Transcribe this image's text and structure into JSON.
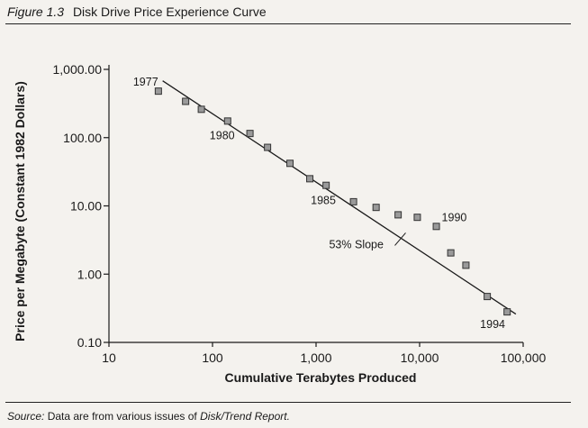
{
  "figure": {
    "number": "Figure 1.3",
    "title": "Disk Drive Price Experience Curve",
    "source_label": "Source:",
    "source_text": "Data are from various issues of",
    "source_publication": "Disk/Trend Report."
  },
  "chart_data": {
    "type": "scatter",
    "xlabel": "Cumulative Terabytes Produced",
    "ylabel": "Price per Megabyte (Constant 1982 Dollars)",
    "xscale": "log",
    "yscale": "log",
    "xlim": [
      10,
      100000
    ],
    "ylim": [
      0.1,
      1000
    ],
    "xticks": [
      10,
      100,
      1000,
      10000,
      100000
    ],
    "xtick_labels": [
      "10",
      "100",
      "1,000",
      "10,000",
      "100,000"
    ],
    "yticks": [
      0.1,
      1,
      10,
      100,
      1000
    ],
    "ytick_labels": [
      "0.10",
      "1.00",
      "10.00",
      "100.00",
      "1,000.00"
    ],
    "points": [
      {
        "x": 30,
        "y": 480
      },
      {
        "x": 55,
        "y": 340
      },
      {
        "x": 78,
        "y": 260
      },
      {
        "x": 140,
        "y": 175
      },
      {
        "x": 230,
        "y": 115
      },
      {
        "x": 340,
        "y": 72
      },
      {
        "x": 560,
        "y": 42
      },
      {
        "x": 870,
        "y": 25
      },
      {
        "x": 1250,
        "y": 20
      },
      {
        "x": 2300,
        "y": 11.5
      },
      {
        "x": 3800,
        "y": 9.5
      },
      {
        "x": 6200,
        "y": 7.4
      },
      {
        "x": 9500,
        "y": 6.8
      },
      {
        "x": 14500,
        "y": 5.0
      },
      {
        "x": 20000,
        "y": 2.05
      },
      {
        "x": 28000,
        "y": 1.35
      },
      {
        "x": 45000,
        "y": 0.47
      },
      {
        "x": 70000,
        "y": 0.28
      }
    ],
    "trend_line": {
      "x": [
        33,
        85000
      ],
      "y": [
        680,
        0.26
      ]
    },
    "annotations": [
      {
        "text": "1977",
        "x": 30,
        "y": 480
      },
      {
        "text": "1980",
        "x": 140,
        "y": 175
      },
      {
        "text": "1985",
        "x": 1250,
        "y": 20
      },
      {
        "text": "1990",
        "x": 14500,
        "y": 5.0
      },
      {
        "text": "1994",
        "x": 70000,
        "y": 0.28
      },
      {
        "text": "53% Slope",
        "x": 6000,
        "y": 2.4
      }
    ],
    "grid": false,
    "marker_color": "#9a9a9a",
    "line_color": "#1a1a1a"
  }
}
